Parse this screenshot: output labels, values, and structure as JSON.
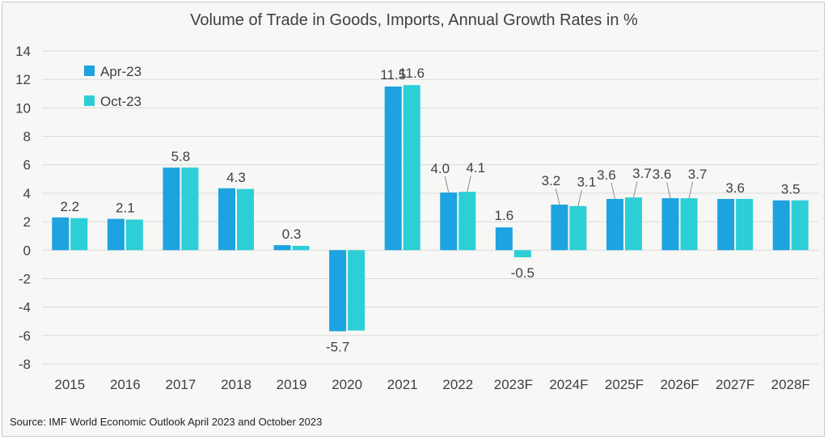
{
  "title": "Volume of Trade in Goods,  Imports, Annual Growth Rates in %",
  "source": "Source: IMF World Economic Outlook April 2023 and October 2023",
  "colors": {
    "series_1": "#1da3e0",
    "series_2": "#2ccfd6",
    "grid": "#d9d9d9",
    "text": "#404040",
    "background": "#f7f7f5"
  },
  "chart_data": {
    "type": "bar",
    "title": "Volume of Trade in Goods,  Imports, Annual Growth Rates in %",
    "xlabel": "",
    "ylabel": "",
    "ylim": [
      -8,
      14
    ],
    "yticks": [
      14,
      12,
      10,
      8,
      6,
      4,
      2,
      0,
      -2,
      -4,
      -6,
      -8
    ],
    "grid": true,
    "legend_position": "top-left",
    "categories": [
      "2015",
      "2016",
      "2017",
      "2018",
      "2019",
      "2020",
      "2021",
      "2022",
      "2023F",
      "2024F",
      "2025F",
      "2026F",
      "2027F",
      "2028F"
    ],
    "series": [
      {
        "name": "Apr-23",
        "color": "#1da3e0",
        "values": [
          2.3,
          2.2,
          5.8,
          4.35,
          0.35,
          -5.7,
          11.5,
          4.05,
          1.6,
          3.2,
          3.6,
          3.65,
          3.6,
          3.5
        ]
      },
      {
        "name": "Oct-23",
        "color": "#2ccfd6",
        "values": [
          2.25,
          2.15,
          5.8,
          4.3,
          0.3,
          -5.65,
          11.6,
          4.1,
          -0.5,
          3.1,
          3.7,
          3.65,
          3.6,
          3.5
        ]
      }
    ],
    "data_labels": [
      "2.2",
      "2.1",
      "5.8",
      "4.3",
      "0.3",
      "-5.7",
      "11.5",
      "11.6",
      "4.0",
      "4.1",
      "1.6",
      "-0.5",
      "3.2",
      "3.1",
      "3.6",
      "3.7",
      "3.6",
      "3.7",
      "3.6",
      "3.5"
    ]
  }
}
